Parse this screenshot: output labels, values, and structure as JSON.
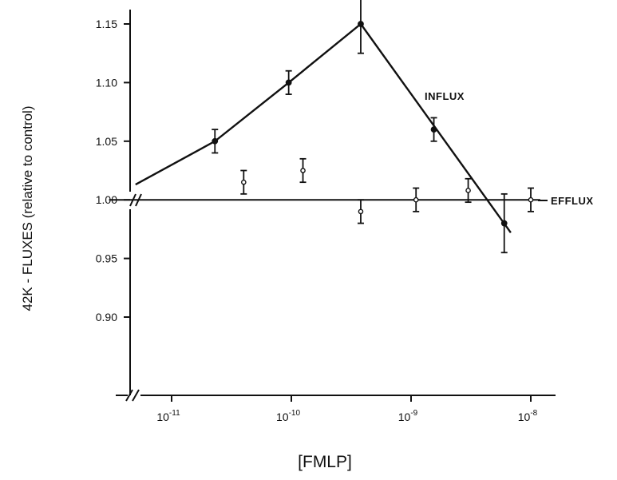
{
  "chart_data": {
    "type": "line",
    "title": "",
    "xlabel": "[FMLP]",
    "ylabel": "42K - FLUXES (relative to control)",
    "x_scale": "log",
    "xlim": [
      3e-12,
      1.6e-08
    ],
    "ylim": [
      0.85,
      1.17
    ],
    "grid": false,
    "x_ticks": [
      {
        "value": 1e-11,
        "base": "10",
        "exp": "-11"
      },
      {
        "value": 1e-10,
        "base": "10",
        "exp": "-10"
      },
      {
        "value": 1e-09,
        "base": "10",
        "exp": "-9"
      },
      {
        "value": 1e-08,
        "base": "10",
        "exp": "-8"
      }
    ],
    "y_ticks": [
      {
        "value": 0.9,
        "label": "0.90"
      },
      {
        "value": 0.95,
        "label": "0.95"
      },
      {
        "value": 1.0,
        "label": "1.00"
      },
      {
        "value": 1.05,
        "label": "1.05"
      },
      {
        "value": 1.1,
        "label": "1.10"
      },
      {
        "value": 1.15,
        "label": "1.15"
      }
    ],
    "series": [
      {
        "name": "INFLUX",
        "marker": "filled",
        "points": [
          {
            "x": 2.3e-11,
            "y": 1.05,
            "err": 0.01
          },
          {
            "x": 9.5e-11,
            "y": 1.1,
            "err": 0.01
          },
          {
            "x": 3.8e-10,
            "y": 1.15,
            "err": 0.025
          },
          {
            "x": 1.55e-09,
            "y": 1.06,
            "err": 0.01
          },
          {
            "x": 6e-09,
            "y": 0.98,
            "err": 0.025
          }
        ],
        "line": [
          {
            "x": 5e-12,
            "y": 1.013
          },
          {
            "x": 2.3e-11,
            "y": 1.05
          },
          {
            "x": 9.5e-11,
            "y": 1.1
          },
          {
            "x": 3.8e-10,
            "y": 1.15
          },
          {
            "x": 6.8e-09,
            "y": 0.972
          }
        ]
      },
      {
        "name": "EFFLUX",
        "marker": "open",
        "points": [
          {
            "x": 4e-11,
            "y": 1.015,
            "err": 0.01
          },
          {
            "x": 1.25e-10,
            "y": 1.025,
            "err": 0.01
          },
          {
            "x": 3.8e-10,
            "y": 0.99,
            "err": 0.01
          },
          {
            "x": 1.1e-09,
            "y": 1.0,
            "err": 0.01
          },
          {
            "x": 3e-09,
            "y": 1.008,
            "err": 0.01
          },
          {
            "x": 1e-08,
            "y": 1.0,
            "err": 0.01
          }
        ],
        "line": [
          {
            "x": 3e-12,
            "y": 1.0
          },
          {
            "x": 1.2e-08,
            "y": 1.0
          }
        ]
      }
    ]
  }
}
